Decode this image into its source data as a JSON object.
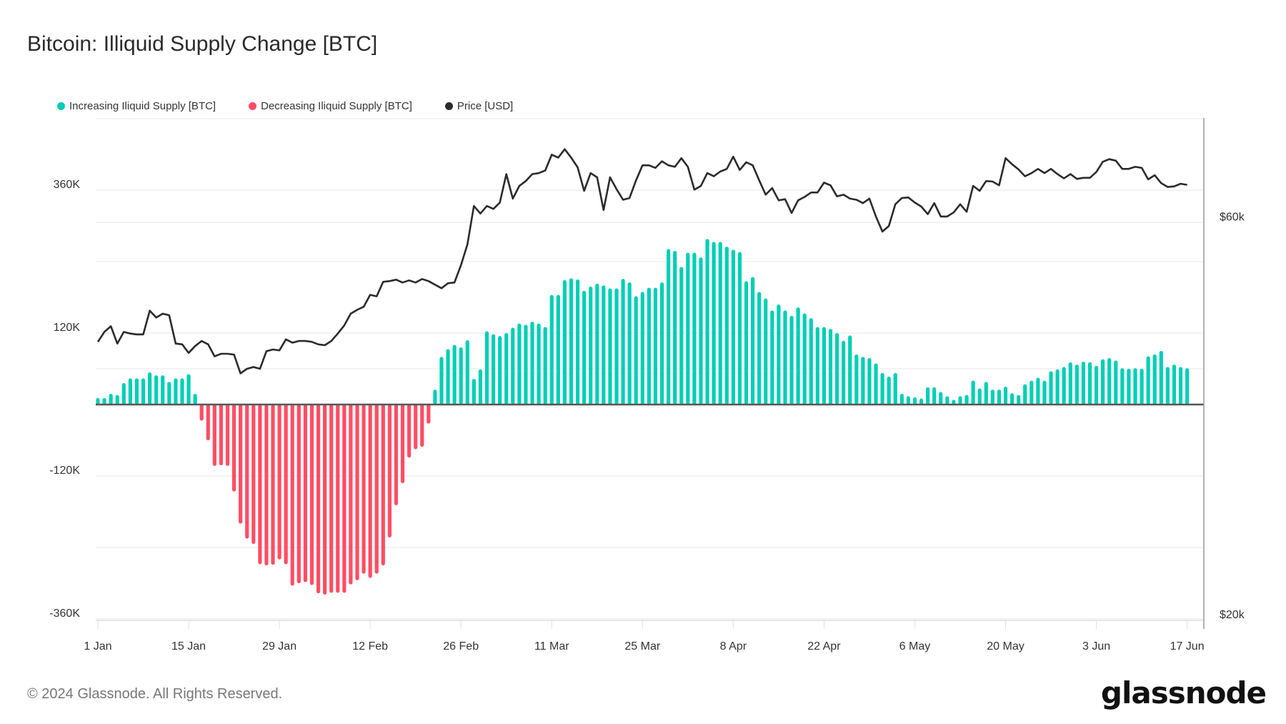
{
  "title": "Bitcoin: Illiquid Supply Change [BTC]",
  "footer": "© 2024 Glassnode. All Rights Reserved.",
  "logo": "glassnode",
  "chart_data": {
    "type": "bar",
    "title": "Bitcoin: Illiquid Supply Change [BTC]",
    "legend": [
      {
        "name": "Increasing Iliquid Supply [BTC]",
        "color": "#00cfb5"
      },
      {
        "name": "Decreasing Iliquid Supply [BTC]",
        "color": "#ff4d63"
      },
      {
        "name": "Price [USD]",
        "color": "#2b2b2b"
      }
    ],
    "legend_position": "top-left",
    "grid": true,
    "left_axis": {
      "range": [
        -360000,
        360000
      ],
      "tick_labels": [
        "360K",
        "120K",
        "-120K",
        "-360K"
      ],
      "tick_values": [
        360000,
        120000,
        -120000,
        -360000
      ]
    },
    "right_axis": {
      "scale": "log",
      "range": [
        20000,
        80000
      ],
      "tick_labels": [
        "$60k",
        "$20k"
      ],
      "tick_values": [
        60000,
        20000
      ]
    },
    "x_tick_labels": [
      "1 Jan",
      "15 Jan",
      "29 Jan",
      "12 Feb",
      "26 Feb",
      "11 Mar",
      "25 Mar",
      "8 Apr",
      "22 Apr",
      "6 May",
      "20 May",
      "3 Jun",
      "17 Jun"
    ],
    "x": [
      "1 Jan",
      "2 Jan",
      "3 Jan",
      "4 Jan",
      "5 Jan",
      "6 Jan",
      "7 Jan",
      "8 Jan",
      "9 Jan",
      "10 Jan",
      "11 Jan",
      "12 Jan",
      "13 Jan",
      "14 Jan",
      "15 Jan",
      "16 Jan",
      "17 Jan",
      "18 Jan",
      "19 Jan",
      "20 Jan",
      "21 Jan",
      "22 Jan",
      "23 Jan",
      "24 Jan",
      "25 Jan",
      "26 Jan",
      "27 Jan",
      "28 Jan",
      "29 Jan",
      "30 Jan",
      "31 Jan",
      "1 Feb",
      "2 Feb",
      "3 Feb",
      "4 Feb",
      "5 Feb",
      "6 Feb",
      "7 Feb",
      "8 Feb",
      "9 Feb",
      "10 Feb",
      "11 Feb",
      "12 Feb",
      "13 Feb",
      "14 Feb",
      "15 Feb",
      "16 Feb",
      "17 Feb",
      "18 Feb",
      "19 Feb",
      "20 Feb",
      "21 Feb",
      "22 Feb",
      "23 Feb",
      "24 Feb",
      "25 Feb",
      "26 Feb",
      "27 Feb",
      "28 Feb",
      "29 Feb",
      "1 Mar",
      "2 Mar",
      "3 Mar",
      "4 Mar",
      "5 Mar",
      "6 Mar",
      "7 Mar",
      "8 Mar",
      "9 Mar",
      "10 Mar",
      "11 Mar",
      "12 Mar",
      "13 Mar",
      "14 Mar",
      "15 Mar",
      "16 Mar",
      "17 Mar",
      "18 Mar",
      "19 Mar",
      "20 Mar",
      "21 Mar",
      "22 Mar",
      "23 Mar",
      "24 Mar",
      "25 Mar",
      "26 Mar",
      "27 Mar",
      "28 Mar",
      "29 Mar",
      "30 Mar",
      "31 Mar",
      "1 Apr",
      "2 Apr",
      "3 Apr",
      "4 Apr",
      "5 Apr",
      "6 Apr",
      "7 Apr",
      "8 Apr",
      "9 Apr",
      "10 Apr",
      "11 Apr",
      "12 Apr",
      "13 Apr",
      "14 Apr",
      "15 Apr",
      "16 Apr",
      "17 Apr",
      "18 Apr",
      "19 Apr",
      "20 Apr",
      "21 Apr",
      "22 Apr",
      "23 Apr",
      "24 Apr",
      "25 Apr",
      "26 Apr",
      "27 Apr",
      "28 Apr",
      "29 Apr",
      "30 Apr",
      "1 May",
      "2 May",
      "3 May",
      "4 May",
      "5 May",
      "6 May",
      "7 May",
      "8 May",
      "9 May",
      "10 May",
      "11 May",
      "12 May",
      "13 May",
      "14 May",
      "15 May",
      "16 May",
      "17 May",
      "18 May",
      "19 May",
      "20 May",
      "21 May",
      "22 May",
      "23 May",
      "24 May",
      "25 May",
      "26 May",
      "27 May",
      "28 May",
      "29 May",
      "30 May",
      "31 May",
      "1 Jun",
      "2 Jun",
      "3 Jun",
      "4 Jun",
      "5 Jun",
      "6 Jun",
      "7 Jun",
      "8 Jun",
      "9 Jun",
      "10 Jun",
      "11 Jun",
      "12 Jun",
      "13 Jun",
      "14 Jun",
      "15 Jun",
      "16 Jun",
      "17 Jun"
    ],
    "supply_change_btc": [
      11000,
      11000,
      18000,
      16000,
      36000,
      44000,
      44000,
      44000,
      54000,
      49000,
      49000,
      38000,
      44000,
      44000,
      51000,
      18000,
      -27000,
      -60000,
      -103000,
      -102000,
      -103000,
      -146000,
      -200000,
      -225000,
      -234000,
      -268000,
      -270000,
      -269000,
      -260000,
      -268000,
      -304000,
      -300000,
      -298000,
      -303000,
      -317000,
      -319000,
      -316000,
      -316000,
      -316000,
      -302000,
      -295000,
      -284000,
      -291000,
      -284000,
      -270000,
      -223000,
      -169000,
      -132000,
      -89000,
      -75000,
      -71000,
      -32000,
      25000,
      80000,
      93000,
      100000,
      96000,
      108000,
      43000,
      59000,
      123000,
      118000,
      115000,
      120000,
      129000,
      136000,
      134000,
      139000,
      136000,
      130000,
      184000,
      184000,
      209000,
      212000,
      210000,
      191000,
      198000,
      203000,
      200000,
      195000,
      195000,
      211000,
      205000,
      182000,
      189000,
      196000,
      196000,
      205000,
      261000,
      258000,
      231000,
      255000,
      255000,
      247000,
      278000,
      273000,
      273000,
      265000,
      260000,
      256000,
      207000,
      214000,
      189000,
      178000,
      158000,
      168000,
      158000,
      149000,
      163000,
      153000,
      145000,
      130000,
      130000,
      127000,
      120000,
      107000,
      116000,
      84000,
      80000,
      78000,
      69000,
      53000,
      47000,
      53000,
      18000,
      14000,
      12000,
      10000,
      29000,
      29000,
      21000,
      14000,
      8000,
      14000,
      16000,
      40000,
      27000,
      38000,
      25000,
      25000,
      30000,
      19000,
      16000,
      34000,
      40000,
      45000,
      40000,
      56000,
      59000,
      63000,
      71000,
      67000,
      72000,
      71000,
      65000,
      76000,
      78000,
      74000,
      61000,
      60000,
      61000,
      60000,
      81000,
      84000,
      90000,
      63000,
      67000,
      63000,
      61000
    ],
    "price_usd": [
      43100,
      44300,
      45000,
      42900,
      44300,
      44100,
      44000,
      44000,
      47000,
      46100,
      46600,
      46400,
      42900,
      42800,
      41800,
      42600,
      43200,
      42800,
      41400,
      41700,
      41700,
      41600,
      39500,
      40000,
      40200,
      40000,
      42000,
      42200,
      42100,
      43400,
      43000,
      43200,
      43200,
      43100,
      42800,
      42700,
      43200,
      44100,
      45100,
      46600,
      47100,
      47500,
      49100,
      48900,
      50900,
      51000,
      51200,
      50800,
      51100,
      50800,
      51300,
      51000,
      50500,
      50000,
      50700,
      50800,
      53300,
      56500,
      62800,
      61500,
      62800,
      62300,
      63400,
      68600,
      64100,
      66400,
      67300,
      68600,
      68800,
      69300,
      72400,
      71800,
      73500,
      71800,
      69900,
      65500,
      68800,
      68000,
      62100,
      68000,
      65800,
      63900,
      64200,
      67400,
      70300,
      70300,
      69800,
      71100,
      70300,
      70000,
      71700,
      70000,
      65700,
      66400,
      68800,
      68200,
      69100,
      69600,
      72000,
      69400,
      70900,
      70300,
      67400,
      64800,
      66000,
      63800,
      64000,
      61600,
      63800,
      64400,
      65200,
      65200,
      67000,
      66500,
      64500,
      64800,
      64100,
      63900,
      63300,
      64100,
      61000,
      58500,
      59400,
      63100,
      64200,
      64300,
      63400,
      62700,
      61400,
      63300,
      61000,
      61000,
      61700,
      63100,
      61800,
      66400,
      65500,
      67300,
      67200,
      66500,
      71700,
      70500,
      69500,
      68200,
      68800,
      69600,
      68800,
      69600,
      68600,
      67800,
      68600,
      67700,
      67900,
      67900,
      69000,
      71000,
      71500,
      71200,
      69600,
      69600,
      70000,
      69800,
      67600,
      68400,
      66900,
      66200,
      66300,
      66800,
      66600
    ]
  }
}
